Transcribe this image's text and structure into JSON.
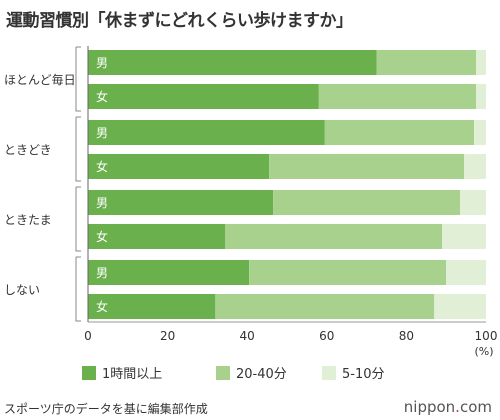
{
  "chart_data": {
    "type": "bar",
    "stacked": true,
    "orientation": "horizontal",
    "title": "運動習慣別「休まずにどれくらい歩けますか」",
    "groups": [
      {
        "label": "ほとんど毎日",
        "bars": [
          {
            "label": "男",
            "values": [
              72.5,
              25.0,
              2.5
            ]
          },
          {
            "label": "女",
            "values": [
              58.0,
              39.5,
              2.5
            ]
          }
        ]
      },
      {
        "label": "ときどき",
        "bars": [
          {
            "label": "男",
            "values": [
              59.5,
              37.5,
              3.0
            ]
          },
          {
            "label": "女",
            "values": [
              45.5,
              49.0,
              5.5
            ]
          }
        ]
      },
      {
        "label": "ときたま",
        "bars": [
          {
            "label": "男",
            "values": [
              46.5,
              47.0,
              6.5
            ]
          },
          {
            "label": "女",
            "values": [
              34.5,
              54.5,
              11.0
            ]
          }
        ]
      },
      {
        "label": "しない",
        "bars": [
          {
            "label": "男",
            "values": [
              40.5,
              49.5,
              10.0
            ]
          },
          {
            "label": "女",
            "values": [
              32.0,
              55.0,
              13.0
            ]
          }
        ]
      }
    ],
    "series": [
      {
        "name": "1時間以上",
        "color": "#6ab04c"
      },
      {
        "name": "20-40分",
        "color": "#a8d18d"
      },
      {
        "name": "5-10分",
        "color": "#e1efd6"
      }
    ],
    "xlim": [
      0,
      100
    ],
    "xticks": [
      "0",
      "20",
      "40",
      "60",
      "80",
      "100"
    ],
    "x_unit": "(%)",
    "legend_position": "bottom"
  },
  "source": "スポーツ庁のデータを基に編集部作成",
  "brand": {
    "prefix": "nippon",
    "dot": ".",
    "suffix": "com"
  }
}
